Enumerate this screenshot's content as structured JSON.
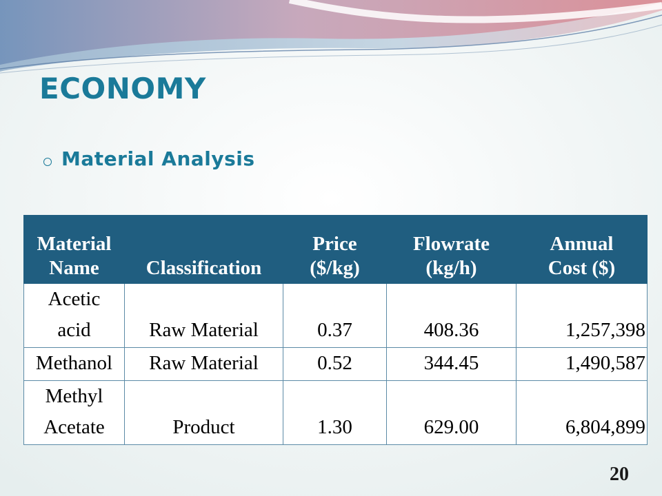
{
  "slide": {
    "title": "ECONOMY",
    "subtitle": "Material Analysis",
    "page_number": "20"
  },
  "table": {
    "headers": [
      [
        "Material",
        "Name"
      ],
      [
        "",
        "Classification"
      ],
      [
        "Price",
        "($/kg)"
      ],
      [
        "Flowrate",
        "(kg/h)"
      ],
      [
        "Annual",
        "Cost ($)"
      ]
    ],
    "rows": [
      {
        "name": [
          "Acetic",
          "acid"
        ],
        "classification": "Raw Material",
        "price": "0.37",
        "flowrate": "408.36",
        "annual_cost": "1,257,398"
      },
      {
        "name": [
          "Methanol"
        ],
        "classification": "Raw Material",
        "price": "0.52",
        "flowrate": "344.45",
        "annual_cost": "1,490,587"
      },
      {
        "name": [
          "Methyl",
          "Acetate"
        ],
        "classification": "Product",
        "price": "1.30",
        "flowrate": "629.00",
        "annual_cost": "6,804,899"
      }
    ]
  },
  "colors": {
    "title": "#1a7a99",
    "header_bg": "#205e80",
    "background": "#f2f6f6"
  }
}
